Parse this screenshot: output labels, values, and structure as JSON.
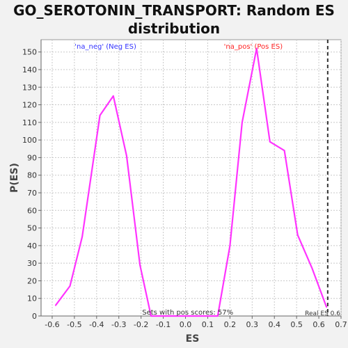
{
  "chart_data": {
    "type": "line",
    "title": "GO_SEROTONIN_TRANSPORT: Random ES distribution",
    "xlabel": "ES",
    "ylabel": "P(ES)",
    "xlim": [
      -0.65,
      0.7
    ],
    "ylim": [
      0,
      157
    ],
    "x_ticks": [
      -0.6,
      -0.5,
      -0.4,
      -0.3,
      -0.2,
      -0.1,
      0.0,
      0.1,
      0.2,
      0.3,
      0.4,
      0.5,
      0.6,
      0.7
    ],
    "x_tick_labels": [
      "-0.6",
      "-0.5",
      "-0.4",
      "-0.3",
      "-0.2",
      "-0.1",
      "0.0",
      "0.1",
      "0.2",
      "0.3",
      "0.4",
      "0.5",
      "0.6",
      "0.7"
    ],
    "y_ticks": [
      0,
      10,
      20,
      30,
      40,
      50,
      60,
      70,
      80,
      90,
      100,
      110,
      120,
      130,
      140,
      150
    ],
    "y_tick_labels": [
      "0",
      "10",
      "20",
      "30",
      "40",
      "50",
      "60",
      "70",
      "80",
      "90",
      "100",
      "110",
      "120",
      "130",
      "140",
      "150"
    ],
    "grid": true,
    "series": [
      {
        "color": "#ff33ff",
        "points": [
          [
            -0.585,
            6
          ],
          [
            -0.52,
            17
          ],
          [
            -0.465,
            45
          ],
          [
            -0.385,
            114
          ],
          [
            -0.325,
            125
          ],
          [
            -0.265,
            91
          ],
          [
            -0.205,
            29
          ],
          [
            -0.155,
            0
          ],
          [
            -0.1,
            0
          ],
          [
            -0.05,
            0
          ],
          [
            0.0,
            0
          ],
          [
            0.05,
            0
          ],
          [
            0.1,
            0
          ],
          [
            0.145,
            0
          ],
          [
            0.2,
            40
          ],
          [
            0.255,
            110
          ],
          [
            0.32,
            152
          ],
          [
            0.38,
            99
          ],
          [
            0.445,
            94
          ],
          [
            0.505,
            46
          ],
          [
            0.57,
            27
          ],
          [
            0.635,
            5
          ]
        ]
      }
    ],
    "real_es": 0.64,
    "real_es_color": "#333333",
    "annotations": {
      "neg": "'na_neg' (Neg ES)",
      "pos": "'na_pos' (Pos ES)",
      "pos_fraction": "Sets with pos scores: 57%",
      "real_es": "Real ES 0.6"
    },
    "colors": {
      "neg_label": "#3333ff",
      "pos_label": "#ff2222",
      "plot_bg": "#ffffff"
    }
  }
}
